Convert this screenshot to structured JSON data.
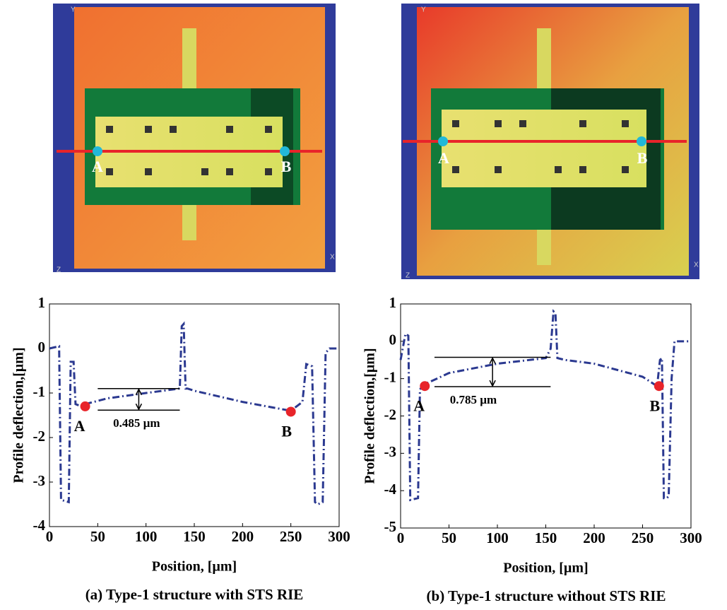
{
  "images": [
    {
      "labels": [
        "A",
        "B"
      ],
      "axis_labels": [
        "Y",
        "X",
        "Z"
      ]
    },
    {
      "labels": [
        "A",
        "B"
      ],
      "axis_labels": [
        "Y",
        "X",
        "Z"
      ]
    }
  ],
  "chart_data": [
    {
      "type": "line",
      "caption": "(a) Type-1 structure with STS RIE",
      "xlabel": "Position, [µm]",
      "ylabel": "Profile deflection,[µm]",
      "x": [
        0,
        10,
        12,
        20,
        22,
        25,
        27,
        33,
        37,
        60,
        100,
        135,
        137,
        139,
        141,
        143,
        150,
        200,
        250,
        262,
        266,
        272,
        275,
        278,
        283,
        286,
        290,
        300
      ],
      "series": [
        {
          "color": "#2b3990",
          "values": [
            0,
            0.05,
            -3.4,
            -3.45,
            -0.3,
            -0.3,
            -1.25,
            -1.3,
            -1.25,
            -1.12,
            -1.0,
            -0.9,
            0.5,
            0.55,
            -0.9,
            -0.9,
            -0.95,
            -1.2,
            -1.4,
            -1.2,
            -0.35,
            -0.4,
            -3.45,
            -3.5,
            -3.45,
            -0.1,
            0,
            0
          ]
        }
      ],
      "markers": [
        {
          "label": "A",
          "x": 37,
          "y": -1.3
        },
        {
          "label": "B",
          "x": 250,
          "y": -1.42
        }
      ],
      "marker_color": "#e8242a",
      "dimension": {
        "label": "0.485 µm",
        "x": [
          50,
          135
        ],
        "y": [
          -0.9,
          -1.385
        ]
      },
      "xlim": [
        0,
        300
      ],
      "xticks": [
        0,
        50,
        100,
        150,
        200,
        250,
        300
      ],
      "ylim": [
        -4,
        1
      ],
      "yticks": [
        -4,
        -3,
        -2,
        -1,
        0,
        1
      ]
    },
    {
      "type": "line",
      "caption": "(b) Type-1 structure without STS RIE",
      "xlabel": "Position, [µm]",
      "ylabel": "Profile deflection,[µm]",
      "x": [
        0,
        5,
        8,
        10,
        18,
        20,
        22,
        25,
        50,
        100,
        150,
        155,
        158,
        160,
        162,
        170,
        200,
        250,
        265,
        268,
        270,
        272,
        275,
        277,
        280,
        283,
        286,
        300
      ],
      "series": [
        {
          "color": "#2b3990",
          "values": [
            -0.5,
            0.2,
            0.15,
            -4.25,
            -4.2,
            -1.3,
            -1.2,
            -1.15,
            -0.85,
            -0.6,
            -0.45,
            -0.2,
            0.8,
            0.75,
            -0.45,
            -0.5,
            -0.6,
            -0.95,
            -1.2,
            -0.5,
            -0.45,
            -4.2,
            -4.2,
            -4.15,
            -1,
            0,
            0,
            0
          ]
        }
      ],
      "markers": [
        {
          "label": "A",
          "x": 25,
          "y": -1.2
        },
        {
          "label": "B",
          "x": 267,
          "y": -1.2
        }
      ],
      "marker_color": "#e8242a",
      "dimension": {
        "label": "0.785 µm",
        "x": [
          35,
          155
        ],
        "y": [
          -0.43,
          -1.215
        ]
      },
      "xlim": [
        0,
        300
      ],
      "xticks": [
        0,
        50,
        100,
        150,
        200,
        250,
        300
      ],
      "ylim": [
        -5,
        1
      ],
      "yticks": [
        -5,
        -4,
        -3,
        -2,
        -1,
        0,
        1
      ]
    }
  ]
}
